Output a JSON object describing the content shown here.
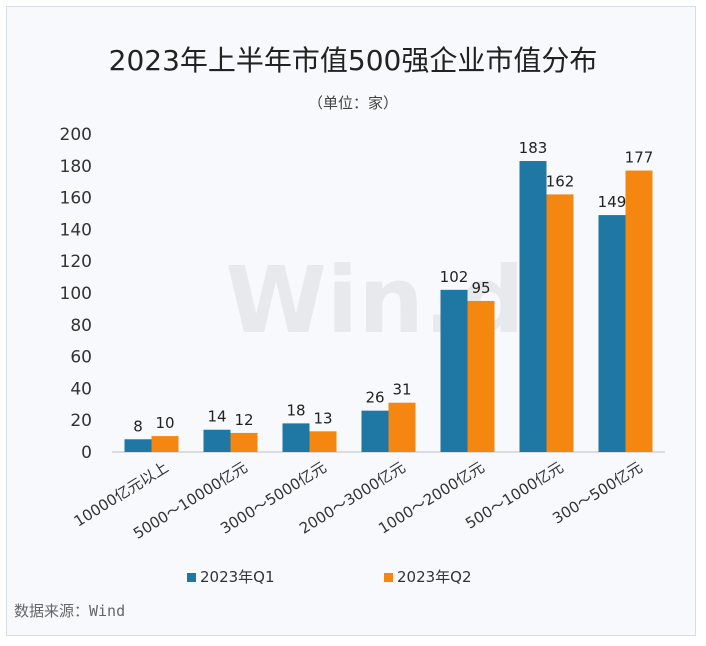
{
  "chart_data": {
    "type": "bar",
    "title": "2023年上半年市值500强企业市值分布",
    "subtitle": "（单位：家）",
    "categories": [
      "10000亿元以上",
      "5000～10000亿元",
      "3000～5000亿元",
      "2000～3000亿元",
      "1000～2000亿元",
      "500～1000亿元",
      "300～500亿元"
    ],
    "series": [
      {
        "name": "2023年Q1",
        "values": [
          8,
          14,
          18,
          26,
          102,
          183,
          149
        ],
        "color": "#1f77a4"
      },
      {
        "name": "2023年Q2",
        "values": [
          10,
          12,
          13,
          31,
          95,
          162,
          177
        ],
        "color": "#f5860f"
      }
    ],
    "ylim": [
      0,
      200
    ],
    "yticks": [
      0,
      20,
      40,
      60,
      80,
      100,
      120,
      140,
      160,
      180,
      200
    ],
    "grid": false,
    "legend": "bottom",
    "source": "数据来源：Wind",
    "watermark": "Win.d"
  }
}
